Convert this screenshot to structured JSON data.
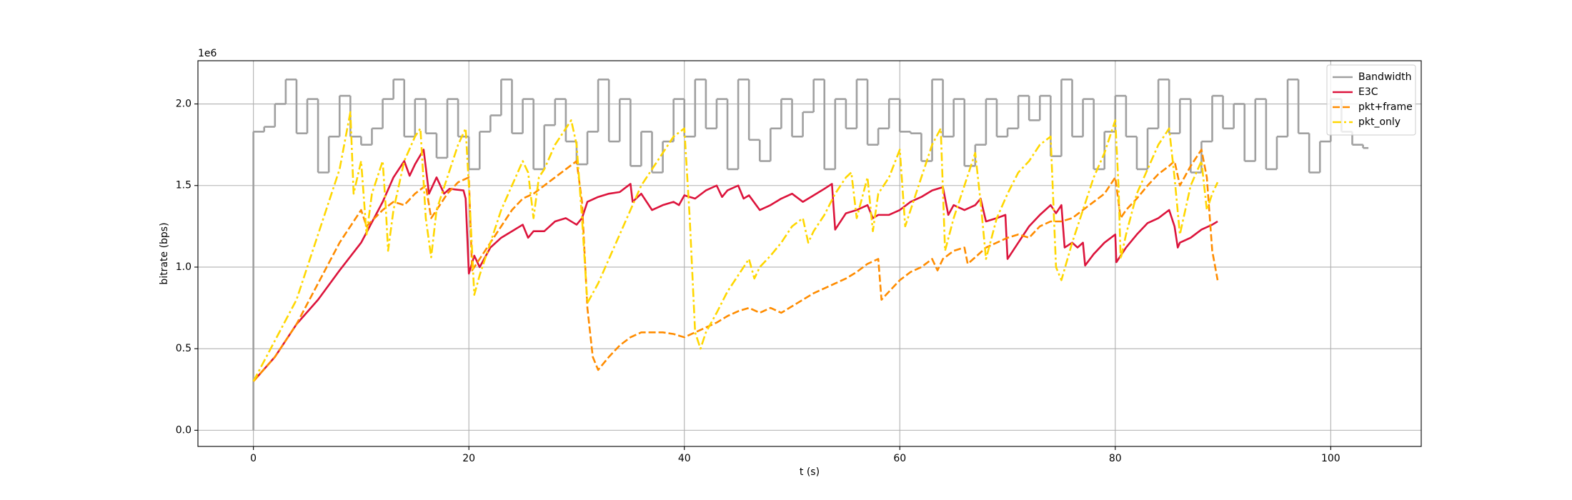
{
  "chart_data": {
    "type": "line",
    "x_label": "t (s)",
    "y_label": "bitrate (bps)",
    "y_offset_text": "1e6",
    "xlim": [
      -5.15,
      108.4
    ],
    "xticks": [
      0,
      20,
      40,
      60,
      80,
      100
    ],
    "ylim": [
      -0.099,
      2.265
    ],
    "yticks": [
      {
        "value": 0,
        "label": "0.0"
      },
      0.5,
      {
        "value": 1,
        "label": "1.0"
      },
      1.5,
      {
        "value": 2,
        "label": "2.0"
      }
    ],
    "grid": true,
    "legend": "upper right",
    "series": [
      {
        "name": "Bandwidth",
        "color": "#a0a0a0",
        "style": "solid",
        "drawstyle": "steps-post",
        "x": [
          0,
          0,
          1,
          2,
          3,
          4,
          5,
          6,
          7,
          8,
          9,
          10,
          11,
          12,
          13,
          14,
          15,
          16,
          17,
          18,
          19,
          20,
          21,
          22,
          23,
          24,
          25,
          26,
          27,
          28,
          29,
          30,
          31,
          32,
          33,
          34,
          35,
          36,
          37,
          38,
          39,
          40,
          41,
          42,
          43,
          44,
          45,
          46,
          47,
          48,
          49,
          50,
          51,
          52,
          53,
          54,
          55,
          56,
          57,
          58,
          59,
          60,
          61,
          62,
          63,
          64,
          65,
          66,
          67,
          68,
          69,
          70,
          71,
          72,
          73,
          74,
          75,
          76,
          77,
          78,
          79,
          80,
          81,
          82,
          83,
          84,
          85,
          86,
          87,
          88,
          89,
          90,
          91,
          92,
          93,
          94,
          95,
          96,
          97,
          98,
          99,
          100,
          101,
          102,
          103,
          103.5
        ],
        "values": [
          0,
          1.83,
          1.86,
          2.0,
          2.15,
          1.82,
          2.03,
          1.58,
          1.8,
          2.05,
          1.8,
          1.75,
          1.85,
          2.03,
          2.15,
          1.8,
          2.03,
          1.82,
          1.67,
          2.03,
          1.8,
          1.6,
          1.83,
          1.93,
          2.15,
          1.82,
          2.03,
          1.6,
          1.87,
          2.03,
          1.77,
          1.63,
          1.83,
          2.15,
          1.77,
          2.03,
          1.62,
          1.83,
          1.58,
          1.77,
          2.03,
          1.8,
          2.15,
          1.85,
          2.03,
          1.6,
          2.15,
          1.78,
          1.65,
          1.85,
          2.03,
          1.8,
          1.95,
          2.15,
          1.6,
          2.03,
          1.85,
          2.15,
          1.75,
          1.85,
          2.03,
          1.83,
          1.82,
          1.65,
          2.15,
          1.8,
          2.03,
          1.62,
          1.75,
          2.03,
          1.8,
          1.85,
          2.05,
          1.9,
          2.05,
          1.68,
          2.15,
          1.8,
          2.03,
          1.6,
          1.83,
          2.05,
          1.8,
          1.6,
          1.85,
          2.15,
          1.82,
          2.03,
          1.58,
          1.77,
          2.05,
          1.85,
          2.0,
          1.65,
          2.03,
          1.6,
          1.8,
          2.15,
          1.82,
          1.58,
          1.77,
          2.03,
          1.83,
          1.75,
          1.73,
          1.73
        ]
      },
      {
        "name": "E3C",
        "color": "#dc143c",
        "style": "solid",
        "x": [
          0,
          2,
          4,
          6,
          8,
          10,
          12,
          13,
          14,
          14.5,
          15,
          15.8,
          16.3,
          17,
          17.7,
          18.2,
          19.5,
          19.7,
          20,
          20.5,
          21,
          22,
          23,
          24,
          25,
          25.5,
          26,
          27,
          28,
          29,
          30,
          30.5,
          31,
          32,
          33,
          34,
          35,
          35.2,
          36,
          37,
          38,
          39,
          39.5,
          40,
          41,
          42,
          43,
          43.5,
          44,
          45,
          45.5,
          46,
          47,
          48,
          49,
          50,
          51,
          52,
          53,
          53.7,
          54,
          55,
          56,
          57,
          57.5,
          58,
          59,
          60,
          61,
          62,
          63,
          64,
          64.5,
          65,
          66,
          67,
          67.5,
          68,
          69,
          69.8,
          70,
          71,
          72,
          73,
          74,
          74.5,
          75,
          75.3,
          76,
          76.5,
          77,
          77.2,
          78,
          79,
          80,
          80.1,
          81,
          82,
          83,
          84,
          85,
          85.5,
          85.8,
          86,
          87,
          88,
          89,
          89.5
        ],
        "values": [
          0.3,
          0.45,
          0.65,
          0.8,
          0.98,
          1.15,
          1.4,
          1.55,
          1.65,
          1.56,
          1.63,
          1.72,
          1.45,
          1.55,
          1.45,
          1.48,
          1.47,
          1.42,
          0.96,
          1.07,
          1.0,
          1.12,
          1.18,
          1.22,
          1.26,
          1.18,
          1.22,
          1.22,
          1.28,
          1.3,
          1.26,
          1.3,
          1.4,
          1.43,
          1.45,
          1.46,
          1.51,
          1.4,
          1.45,
          1.35,
          1.38,
          1.4,
          1.38,
          1.44,
          1.42,
          1.47,
          1.5,
          1.43,
          1.47,
          1.5,
          1.42,
          1.44,
          1.35,
          1.38,
          1.42,
          1.45,
          1.4,
          1.44,
          1.48,
          1.51,
          1.23,
          1.33,
          1.35,
          1.38,
          1.3,
          1.32,
          1.32,
          1.35,
          1.4,
          1.43,
          1.47,
          1.49,
          1.32,
          1.38,
          1.35,
          1.38,
          1.42,
          1.28,
          1.3,
          1.32,
          1.05,
          1.15,
          1.25,
          1.32,
          1.38,
          1.33,
          1.38,
          1.12,
          1.15,
          1.12,
          1.15,
          1.01,
          1.08,
          1.15,
          1.2,
          1.03,
          1.12,
          1.2,
          1.27,
          1.3,
          1.35,
          1.25,
          1.12,
          1.15,
          1.18,
          1.23,
          1.26,
          1.28
        ]
      },
      {
        "name": "pkt+frame",
        "color": "#ff8c00",
        "style": "dashed",
        "x": [
          0,
          2,
          4,
          6,
          8,
          8.5,
          10,
          10.5,
          12,
          13,
          14,
          15,
          16,
          16.5,
          17,
          18,
          19,
          20,
          20.3,
          21,
          22,
          23,
          24,
          25,
          26,
          27,
          28,
          29,
          30,
          30.5,
          31,
          31.5,
          32,
          33,
          34,
          35,
          36,
          37,
          38,
          39,
          40,
          41,
          42,
          43,
          44,
          45,
          46,
          47,
          48,
          49,
          50,
          51,
          52,
          53,
          54,
          55,
          56,
          57,
          58,
          58.3,
          59,
          60,
          61,
          62,
          63,
          63.5,
          64,
          65,
          66,
          66.3,
          67,
          68,
          69,
          70,
          71,
          72,
          73,
          74,
          75,
          76,
          77,
          78,
          79,
          80,
          80.5,
          81,
          82,
          83,
          84,
          85,
          85.5,
          86,
          87,
          88,
          88.5,
          89,
          89.5
        ],
        "values": [
          0.3,
          0.45,
          0.65,
          0.9,
          1.15,
          1.2,
          1.35,
          1.25,
          1.35,
          1.4,
          1.38,
          1.45,
          1.5,
          1.3,
          1.35,
          1.45,
          1.52,
          1.55,
          0.98,
          1.05,
          1.15,
          1.25,
          1.35,
          1.42,
          1.45,
          1.5,
          1.55,
          1.6,
          1.65,
          1.4,
          0.75,
          0.45,
          0.37,
          0.45,
          0.52,
          0.57,
          0.6,
          0.6,
          0.6,
          0.59,
          0.57,
          0.6,
          0.63,
          0.66,
          0.7,
          0.73,
          0.75,
          0.72,
          0.75,
          0.72,
          0.76,
          0.8,
          0.84,
          0.87,
          0.9,
          0.93,
          0.97,
          1.02,
          1.05,
          0.8,
          0.85,
          0.92,
          0.97,
          1.0,
          1.05,
          0.98,
          1.05,
          1.1,
          1.12,
          1.02,
          1.06,
          1.12,
          1.15,
          1.18,
          1.2,
          1.18,
          1.25,
          1.28,
          1.28,
          1.3,
          1.35,
          1.4,
          1.45,
          1.55,
          1.3,
          1.35,
          1.42,
          1.5,
          1.57,
          1.62,
          1.65,
          1.5,
          1.62,
          1.72,
          1.55,
          1.1,
          0.92
        ]
      },
      {
        "name": "pkt_only",
        "color": "#ffd700",
        "style": "dashdot",
        "x": [
          0,
          2,
          4,
          6,
          8,
          9,
          9.3,
          10,
          10.5,
          11,
          12,
          12.3,
          12.5,
          13,
          14,
          15,
          15.5,
          16,
          16.5,
          17,
          18,
          19,
          19.7,
          20,
          20.5,
          21,
          22,
          23,
          24,
          25,
          25.5,
          26,
          26.5,
          27,
          28,
          29,
          29.5,
          30,
          30.5,
          31,
          32,
          33,
          34,
          35,
          36,
          37,
          38,
          39,
          40,
          40.5,
          41,
          41.5,
          42,
          43,
          44,
          45,
          46,
          46.5,
          47,
          48,
          49,
          50,
          51,
          51.5,
          52,
          53,
          54,
          55,
          55.5,
          56,
          57,
          57.5,
          58,
          59,
          60,
          60.5,
          61,
          62,
          63,
          63.8,
          64.2,
          65,
          66,
          67,
          67.5,
          68,
          69,
          70,
          71,
          72,
          73,
          74,
          74.5,
          75,
          76,
          77,
          78,
          79,
          80,
          80.3,
          80.5,
          81,
          82,
          83,
          84,
          85,
          85.5,
          86,
          86.5,
          87,
          88,
          88.5,
          89,
          89.5
        ],
        "values": [
          0.3,
          0.55,
          0.8,
          1.2,
          1.6,
          1.95,
          1.45,
          1.65,
          1.2,
          1.45,
          1.65,
          1.35,
          1.1,
          1.35,
          1.65,
          1.8,
          1.85,
          1.3,
          1.06,
          1.35,
          1.55,
          1.75,
          1.85,
          1.5,
          0.83,
          0.95,
          1.15,
          1.35,
          1.5,
          1.65,
          1.58,
          1.3,
          1.55,
          1.6,
          1.75,
          1.85,
          1.9,
          1.75,
          1.3,
          0.78,
          0.9,
          1.05,
          1.2,
          1.35,
          1.5,
          1.6,
          1.7,
          1.8,
          1.85,
          1.3,
          0.6,
          0.5,
          0.6,
          0.72,
          0.85,
          0.95,
          1.05,
          0.93,
          1.0,
          1.07,
          1.15,
          1.25,
          1.3,
          1.15,
          1.22,
          1.32,
          1.45,
          1.55,
          1.58,
          1.3,
          1.55,
          1.22,
          1.45,
          1.55,
          1.72,
          1.25,
          1.35,
          1.55,
          1.75,
          1.85,
          1.1,
          1.3,
          1.5,
          1.7,
          1.4,
          1.05,
          1.3,
          1.45,
          1.58,
          1.65,
          1.75,
          1.8,
          1.0,
          0.92,
          1.15,
          1.35,
          1.55,
          1.7,
          1.9,
          1.5,
          1.05,
          1.2,
          1.45,
          1.6,
          1.75,
          1.85,
          1.55,
          1.2,
          1.35,
          1.5,
          1.65,
          1.35,
          1.45,
          1.52
        ]
      }
    ]
  }
}
